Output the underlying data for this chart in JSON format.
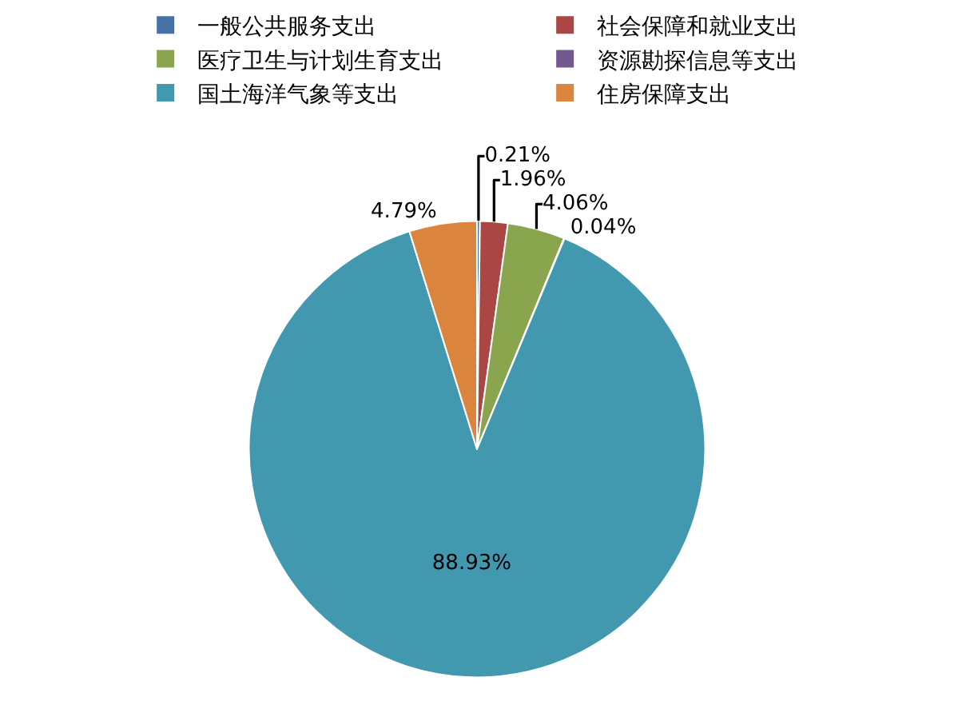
{
  "chart_data": {
    "type": "pie",
    "categories": [
      "一般公共服务支出",
      "社会保障和就业支出",
      "医疗卫生与计划生育支出",
      "资源勘探信息等支出",
      "国土海洋气象等支出",
      "住房保障支出"
    ],
    "values": [
      0.21,
      1.96,
      4.06,
      0.04,
      88.93,
      4.79
    ],
    "colors": [
      "#4572a7",
      "#aa4643",
      "#89a54e",
      "#71588f",
      "#4198af",
      "#db843d"
    ],
    "value_labels": [
      "0.21%",
      "1.96%",
      "4.06%",
      "0.04%",
      "88.93%",
      "4.79%"
    ],
    "legend": "top"
  }
}
